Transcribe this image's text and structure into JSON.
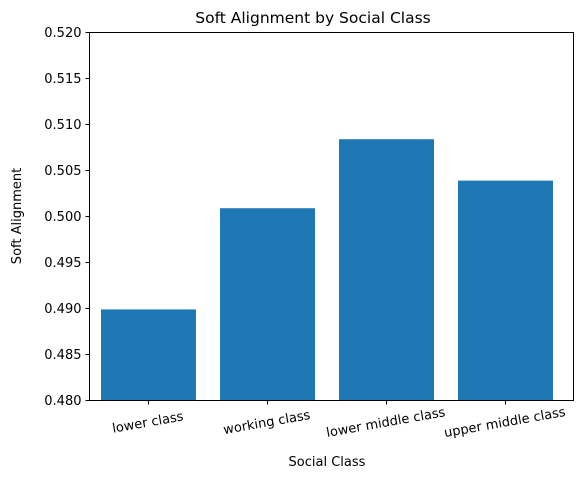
{
  "chart_data": {
    "type": "bar",
    "title": "Soft Alignment by Social Class",
    "xlabel": "Social Class",
    "ylabel": "Soft Alignment",
    "categories": [
      "lower class",
      "working class",
      "lower middle class",
      "upper middle class"
    ],
    "values": [
      0.4899,
      0.5009,
      0.5084,
      0.5039
    ],
    "ylim": [
      0.48,
      0.52
    ],
    "yticks": [
      "0.480",
      "0.485",
      "0.490",
      "0.495",
      "0.500",
      "0.505",
      "0.510",
      "0.515",
      "0.520"
    ],
    "bar_color": "#1f77b4",
    "grid": false,
    "legend": "none"
  }
}
